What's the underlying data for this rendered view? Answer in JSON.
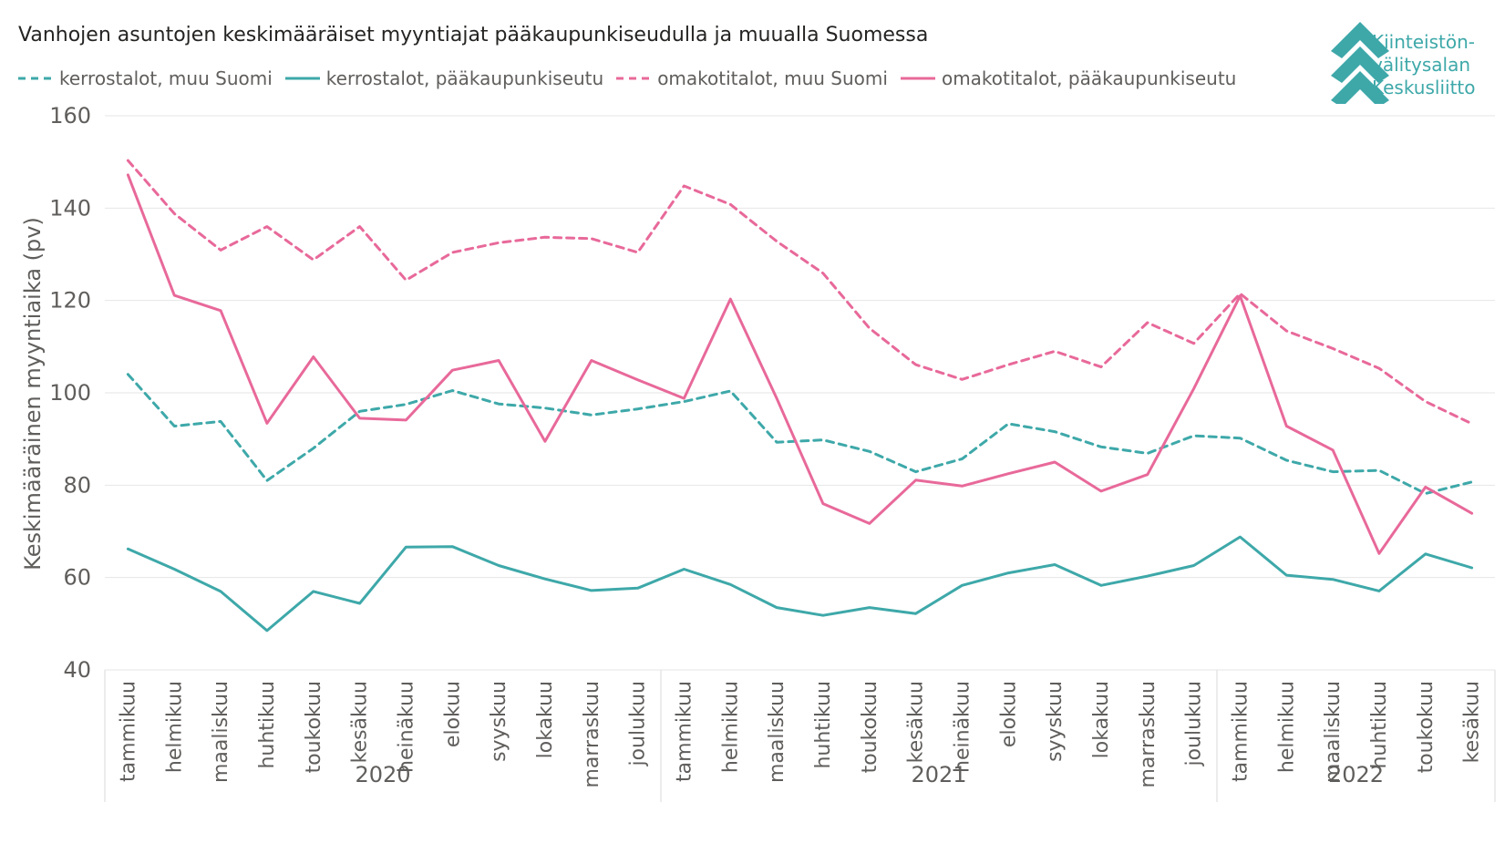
{
  "title": "Vanhojen asuntojen keskimääräiset myyntiajat pääkaupunkiseudulla ja muualla Suomessa",
  "logo": {
    "lines": [
      "Kiinteistön-",
      "välitysalan",
      "Keskusliitto"
    ],
    "icon": "chevron-stack-icon",
    "color": "#3ea8a9"
  },
  "chart_data": {
    "type": "line",
    "ylabel": "Keskimääräinen myyntiaika (pv)",
    "xlabel": "",
    "ylim": [
      40,
      160
    ],
    "yticks": [
      40,
      60,
      80,
      100,
      120,
      140,
      160
    ],
    "grid": true,
    "legend_position": "top-left",
    "years": [
      {
        "label": "2020",
        "months": 12
      },
      {
        "label": "2021",
        "months": 12
      },
      {
        "label": "2022",
        "months": 6
      }
    ],
    "categories": [
      "tammikuu",
      "helmikuu",
      "maaliskuu",
      "huhtikuu",
      "toukokuu",
      "kesäkuu",
      "heinäkuu",
      "elokuu",
      "syyskuu",
      "lokakuu",
      "marraskuu",
      "joulukuu",
      "tammikuu",
      "helmikuu",
      "maaliskuu",
      "huhtikuu",
      "toukokuu",
      "kesäkuu",
      "heinäkuu",
      "elokuu",
      "syyskuu",
      "lokakuu",
      "marraskuu",
      "joulukuu",
      "tammikuu",
      "helmikuu",
      "maaliskuu",
      "huhtikuu",
      "toukokuu",
      "kesäkuu"
    ],
    "series": [
      {
        "name": "kerrostalot, muu Suomi",
        "color": "#3ea8a9",
        "dashed": true,
        "values": [
          104,
          92.8,
          93.8,
          81,
          88,
          96,
          97.5,
          100.5,
          97.6,
          96.7,
          95.2,
          96.5,
          98.1,
          100.4,
          89.3,
          89.8,
          87.3,
          82.9,
          85.7,
          93.3,
          91.6,
          88.3,
          86.9,
          90.7,
          90.2,
          85.4,
          82.9,
          83.2,
          78.2,
          80.7
        ]
      },
      {
        "name": "kerrostalot, pääkaupunkiseutu",
        "color": "#3ea8a9",
        "dashed": false,
        "values": [
          66.2,
          61.8,
          57,
          48.5,
          57,
          54.4,
          66.6,
          66.7,
          62.6,
          59.7,
          57.2,
          57.7,
          61.8,
          58.5,
          53.5,
          51.8,
          53.5,
          52.2,
          58.3,
          61,
          62.8,
          58.3,
          60.3,
          62.6,
          68.8,
          60.5,
          59.6,
          57.1,
          65.1,
          62.1
        ]
      },
      {
        "name": "omakotitalot, muu Suomi",
        "color": "#e8699a",
        "dashed": true,
        "values": [
          150.3,
          138.8,
          130.9,
          136,
          128.8,
          136,
          124.4,
          130.4,
          132.5,
          133.7,
          133.4,
          130.4,
          144.8,
          140.8,
          132.8,
          125.9,
          114,
          106.1,
          102.9,
          106.1,
          109,
          105.6,
          115.2,
          110.7,
          121.5,
          113.4,
          109.6,
          105.3,
          98.1,
          93.3
        ]
      },
      {
        "name": "omakotitalot, pääkaupunkiseutu",
        "color": "#e8699a",
        "dashed": false,
        "values": [
          147.2,
          121.1,
          117.8,
          93.4,
          107.8,
          94.5,
          94.1,
          104.9,
          107,
          89.5,
          107,
          102.8,
          98.8,
          120.3,
          98.8,
          76,
          71.7,
          81.1,
          79.8,
          82.5,
          85,
          78.7,
          82.3,
          100.9,
          121,
          92.8,
          87.6,
          65.2,
          79.6,
          73.9
        ]
      }
    ]
  }
}
